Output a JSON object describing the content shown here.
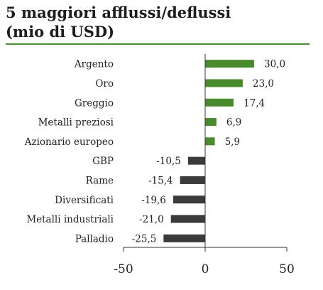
{
  "title_line1": "5 maggiori afflussi/deflussi",
  "title_line2": "(mio di USD)",
  "colors": {
    "positive": "#4a8a2e",
    "negative": "#3b3b3b",
    "rule": "#4d8a31",
    "axis": "#333333"
  },
  "chart_data": {
    "type": "bar",
    "orientation": "horizontal",
    "title": "5 maggiori afflussi/deflussi (mio di USD)",
    "categories": [
      "Argento",
      "Oro",
      "Greggio",
      "Metalli preziosi",
      "Azionario europeo",
      "GBP",
      "Rame",
      "Diversificati",
      "Metalli industriali",
      "Palladio"
    ],
    "values": [
      30.0,
      23.0,
      17.4,
      6.9,
      5.9,
      -10.5,
      -15.4,
      -19.6,
      -21.0,
      -25.5
    ],
    "value_labels": [
      "30,0",
      "23,0",
      "17,4",
      "6,9",
      "5,9",
      "-10,5",
      "-15,4",
      "-19,6",
      "-21,0",
      "-25,5"
    ],
    "xlim": [
      -50,
      50
    ],
    "xticks": [
      -50,
      0,
      50
    ],
    "xtick_labels": [
      "-50",
      "0",
      "50"
    ],
    "grid": false,
    "legend": "none"
  }
}
